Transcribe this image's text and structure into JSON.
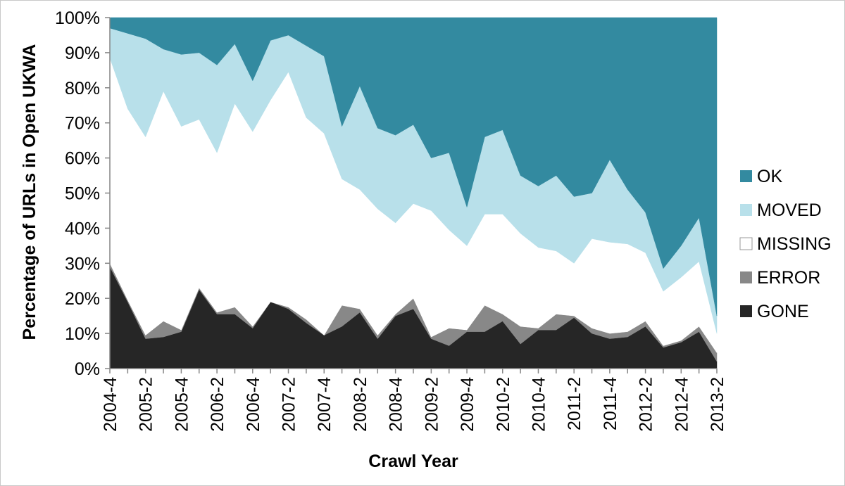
{
  "chart_data": {
    "type": "area",
    "stacked": true,
    "percent_stacked": true,
    "title": "",
    "xlabel": "Crawl Year",
    "ylabel": "Percentage of URLs in Open UKWA",
    "ylim": [
      0,
      100
    ],
    "y_ticks": [
      "0%",
      "10%",
      "20%",
      "30%",
      "40%",
      "50%",
      "60%",
      "70%",
      "80%",
      "90%",
      "100%"
    ],
    "x": [
      "2004-4",
      "2005-1",
      "2005-2",
      "2005-3",
      "2005-4",
      "2006-1",
      "2006-2",
      "2006-3",
      "2006-4",
      "2007-1",
      "2007-2",
      "2007-3",
      "2007-4",
      "2008-1",
      "2008-2",
      "2008-3",
      "2008-4",
      "2009-1",
      "2009-2",
      "2009-3",
      "2009-4",
      "2010-1",
      "2010-2",
      "2010-3",
      "2010-4",
      "2011-1",
      "2011-2",
      "2011-3",
      "2011-4",
      "2012-1",
      "2012-2",
      "2012-3",
      "2012-4",
      "2013-1",
      "2013-2"
    ],
    "x_tick_labels": [
      "2004-4",
      "2005-2",
      "2005-4",
      "2006-2",
      "2006-4",
      "2007-2",
      "2007-4",
      "2008-2",
      "2008-4",
      "2009-2",
      "2009-4",
      "2010-2",
      "2010-4",
      "2011-2",
      "2011-4",
      "2012-2",
      "2012-4",
      "2013-2"
    ],
    "legend_position": "right",
    "series": [
      {
        "name": "GONE",
        "color": "#262626",
        "values": [
          29,
          19,
          8.5,
          9,
          10.5,
          22.5,
          15.5,
          15.5,
          11.5,
          19,
          17,
          13,
          9.5,
          12,
          16,
          8.5,
          15,
          17,
          8.5,
          6.5,
          10.5,
          10.5,
          13.5,
          7,
          11,
          11,
          14.5,
          10,
          8.5,
          9,
          12,
          6,
          7.5,
          10.5,
          2
        ]
      },
      {
        "name": "ERROR",
        "color": "#888888",
        "values": [
          1,
          0.5,
          1,
          4.5,
          0.5,
          0.5,
          0.5,
          2,
          0.5,
          0,
          0.5,
          1,
          0,
          6,
          1,
          1,
          0.5,
          3,
          0.5,
          5,
          0.5,
          7.5,
          2,
          5,
          0.5,
          4.5,
          0.5,
          1.5,
          1.5,
          1.5,
          1.5,
          0.5,
          0.5,
          1.5,
          2.5
        ]
      },
      {
        "name": "MISSING",
        "color": "#ffffff",
        "values": [
          58.5,
          54.5,
          56.5,
          65.5,
          58,
          48,
          45.5,
          58,
          55.5,
          57.5,
          67,
          57.5,
          57.5,
          36,
          34,
          36,
          26,
          27,
          36,
          28,
          24,
          26,
          28.5,
          26.5,
          23,
          18,
          15,
          25.5,
          26,
          25,
          19.5,
          15.5,
          18,
          18.5,
          5.5
        ]
      },
      {
        "name": "MOVED",
        "color": "#b8e0ea",
        "values": [
          8.5,
          21.5,
          28,
          12,
          20.5,
          19,
          25,
          17,
          14.5,
          17,
          10.5,
          20.5,
          22,
          15,
          29.5,
          23,
          25,
          22.5,
          15,
          22,
          11,
          22,
          24,
          16.5,
          17.5,
          21.5,
          19,
          13,
          23.5,
          15.5,
          11.5,
          6.5,
          9,
          12.5,
          5
        ]
      },
      {
        "name": "OK",
        "color": "#338aa0",
        "values": [
          3,
          4.5,
          6,
          9,
          10.5,
          10,
          13.5,
          7.5,
          18,
          6.5,
          5,
          8,
          11,
          31,
          19.5,
          31.5,
          33.5,
          30.5,
          40,
          38.5,
          54,
          34,
          32,
          45,
          48,
          45,
          51,
          50,
          40.5,
          49,
          55.5,
          71.5,
          65,
          57,
          85
        ]
      }
    ]
  }
}
